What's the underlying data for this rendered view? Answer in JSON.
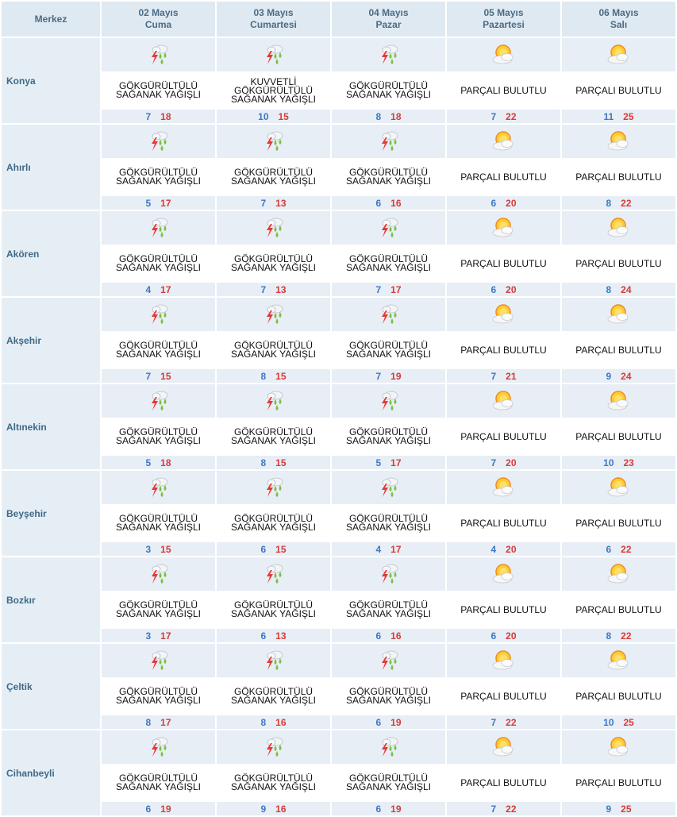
{
  "header": {
    "station_label": "Merkez",
    "days": [
      {
        "date": "02 Mayıs",
        "weekday": "Cuma"
      },
      {
        "date": "03 Mayıs",
        "weekday": "Cumartesi"
      },
      {
        "date": "04 Mayıs",
        "weekday": "Pazar"
      },
      {
        "date": "05 Mayıs",
        "weekday": "Pazartesi"
      },
      {
        "date": "06 Mayıs",
        "weekday": "Salı"
      }
    ]
  },
  "icons": {
    "storm": "thunderstorm-rain-icon",
    "partly": "partly-cloudy-icon"
  },
  "colors": {
    "header_bg": "#dfe9f1",
    "header_text": "#4b6c85",
    "city_text": "#3f6a88",
    "min_temp": "#3d78c4",
    "max_temp": "#d73a3a"
  },
  "rows": [
    {
      "city": "Konya",
      "days": [
        {
          "icon": "storm",
          "lines": [
            "GÖKGÜRÜLTÜLÜ",
            "SAĞANAK YAĞIŞLI"
          ],
          "min": "7",
          "max": "18"
        },
        {
          "icon": "storm",
          "lines": [
            "KUVVETLİ",
            "GÖKGÜRÜLTÜLÜ",
            "SAĞANAK YAĞIŞLI"
          ],
          "min": "10",
          "max": "15"
        },
        {
          "icon": "storm",
          "lines": [
            "GÖKGÜRÜLTÜLÜ",
            "SAĞANAK YAĞIŞLI"
          ],
          "min": "8",
          "max": "18"
        },
        {
          "icon": "partly",
          "lines": [
            "PARÇALI BULUTLU"
          ],
          "min": "7",
          "max": "22"
        },
        {
          "icon": "partly",
          "lines": [
            "PARÇALI BULUTLU"
          ],
          "min": "11",
          "max": "25"
        }
      ]
    },
    {
      "city": "Ahırlı",
      "days": [
        {
          "icon": "storm",
          "lines": [
            "GÖKGÜRÜLTÜLÜ",
            "SAĞANAK YAĞIŞLI"
          ],
          "min": "5",
          "max": "17"
        },
        {
          "icon": "storm",
          "lines": [
            "GÖKGÜRÜLTÜLÜ",
            "SAĞANAK YAĞIŞLI"
          ],
          "min": "7",
          "max": "13"
        },
        {
          "icon": "storm",
          "lines": [
            "GÖKGÜRÜLTÜLÜ",
            "SAĞANAK YAĞIŞLI"
          ],
          "min": "6",
          "max": "16"
        },
        {
          "icon": "partly",
          "lines": [
            "PARÇALI BULUTLU"
          ],
          "min": "6",
          "max": "20"
        },
        {
          "icon": "partly",
          "lines": [
            "PARÇALI BULUTLU"
          ],
          "min": "8",
          "max": "22"
        }
      ]
    },
    {
      "city": "Akören",
      "days": [
        {
          "icon": "storm",
          "lines": [
            "GÖKGÜRÜLTÜLÜ",
            "SAĞANAK YAĞIŞLI"
          ],
          "min": "4",
          "max": "17"
        },
        {
          "icon": "storm",
          "lines": [
            "GÖKGÜRÜLTÜLÜ",
            "SAĞANAK YAĞIŞLI"
          ],
          "min": "7",
          "max": "13"
        },
        {
          "icon": "storm",
          "lines": [
            "GÖKGÜRÜLTÜLÜ",
            "SAĞANAK YAĞIŞLI"
          ],
          "min": "7",
          "max": "17"
        },
        {
          "icon": "partly",
          "lines": [
            "PARÇALI BULUTLU"
          ],
          "min": "6",
          "max": "20"
        },
        {
          "icon": "partly",
          "lines": [
            "PARÇALI BULUTLU"
          ],
          "min": "8",
          "max": "24"
        }
      ]
    },
    {
      "city": "Akşehir",
      "days": [
        {
          "icon": "storm",
          "lines": [
            "GÖKGÜRÜLTÜLÜ",
            "SAĞANAK YAĞIŞLI"
          ],
          "min": "7",
          "max": "15"
        },
        {
          "icon": "storm",
          "lines": [
            "GÖKGÜRÜLTÜLÜ",
            "SAĞANAK YAĞIŞLI"
          ],
          "min": "8",
          "max": "15"
        },
        {
          "icon": "storm",
          "lines": [
            "GÖKGÜRÜLTÜLÜ",
            "SAĞANAK YAĞIŞLI"
          ],
          "min": "7",
          "max": "19"
        },
        {
          "icon": "partly",
          "lines": [
            "PARÇALI BULUTLU"
          ],
          "min": "7",
          "max": "21"
        },
        {
          "icon": "partly",
          "lines": [
            "PARÇALI BULUTLU"
          ],
          "min": "9",
          "max": "24"
        }
      ]
    },
    {
      "city": "Altınekin",
      "days": [
        {
          "icon": "storm",
          "lines": [
            "GÖKGÜRÜLTÜLÜ",
            "SAĞANAK YAĞIŞLI"
          ],
          "min": "5",
          "max": "18"
        },
        {
          "icon": "storm",
          "lines": [
            "GÖKGÜRÜLTÜLÜ",
            "SAĞANAK YAĞIŞLI"
          ],
          "min": "8",
          "max": "15"
        },
        {
          "icon": "storm",
          "lines": [
            "GÖKGÜRÜLTÜLÜ",
            "SAĞANAK YAĞIŞLI"
          ],
          "min": "5",
          "max": "17"
        },
        {
          "icon": "partly",
          "lines": [
            "PARÇALI BULUTLU"
          ],
          "min": "7",
          "max": "20"
        },
        {
          "icon": "partly",
          "lines": [
            "PARÇALI BULUTLU"
          ],
          "min": "10",
          "max": "23"
        }
      ]
    },
    {
      "city": "Beyşehir",
      "days": [
        {
          "icon": "storm",
          "lines": [
            "GÖKGÜRÜLTÜLÜ",
            "SAĞANAK YAĞIŞLI"
          ],
          "min": "3",
          "max": "15"
        },
        {
          "icon": "storm",
          "lines": [
            "GÖKGÜRÜLTÜLÜ",
            "SAĞANAK YAĞIŞLI"
          ],
          "min": "6",
          "max": "15"
        },
        {
          "icon": "storm",
          "lines": [
            "GÖKGÜRÜLTÜLÜ",
            "SAĞANAK YAĞIŞLI"
          ],
          "min": "4",
          "max": "17"
        },
        {
          "icon": "partly",
          "lines": [
            "PARÇALI BULUTLU"
          ],
          "min": "4",
          "max": "20"
        },
        {
          "icon": "partly",
          "lines": [
            "PARÇALI BULUTLU"
          ],
          "min": "6",
          "max": "22"
        }
      ]
    },
    {
      "city": "Bozkır",
      "days": [
        {
          "icon": "storm",
          "lines": [
            "GÖKGÜRÜLTÜLÜ",
            "SAĞANAK YAĞIŞLI"
          ],
          "min": "3",
          "max": "17"
        },
        {
          "icon": "storm",
          "lines": [
            "GÖKGÜRÜLTÜLÜ",
            "SAĞANAK YAĞIŞLI"
          ],
          "min": "6",
          "max": "13"
        },
        {
          "icon": "storm",
          "lines": [
            "GÖKGÜRÜLTÜLÜ",
            "SAĞANAK YAĞIŞLI"
          ],
          "min": "6",
          "max": "16"
        },
        {
          "icon": "partly",
          "lines": [
            "PARÇALI BULUTLU"
          ],
          "min": "6",
          "max": "20"
        },
        {
          "icon": "partly",
          "lines": [
            "PARÇALI BULUTLU"
          ],
          "min": "8",
          "max": "22"
        }
      ]
    },
    {
      "city": "Çeltik",
      "days": [
        {
          "icon": "storm",
          "lines": [
            "GÖKGÜRÜLTÜLÜ",
            "SAĞANAK YAĞIŞLI"
          ],
          "min": "8",
          "max": "17"
        },
        {
          "icon": "storm",
          "lines": [
            "GÖKGÜRÜLTÜLÜ",
            "SAĞANAK YAĞIŞLI"
          ],
          "min": "8",
          "max": "16"
        },
        {
          "icon": "storm",
          "lines": [
            "GÖKGÜRÜLTÜLÜ",
            "SAĞANAK YAĞIŞLI"
          ],
          "min": "6",
          "max": "19"
        },
        {
          "icon": "partly",
          "lines": [
            "PARÇALI BULUTLU"
          ],
          "min": "7",
          "max": "22"
        },
        {
          "icon": "partly",
          "lines": [
            "PARÇALI BULUTLU"
          ],
          "min": "10",
          "max": "25"
        }
      ]
    },
    {
      "city": "Cihanbeyli",
      "days": [
        {
          "icon": "storm",
          "lines": [
            "GÖKGÜRÜLTÜLÜ",
            "SAĞANAK YAĞIŞLI"
          ],
          "min": "6",
          "max": "19"
        },
        {
          "icon": "storm",
          "lines": [
            "GÖKGÜRÜLTÜLÜ",
            "SAĞANAK YAĞIŞLI"
          ],
          "min": "9",
          "max": "16"
        },
        {
          "icon": "storm",
          "lines": [
            "GÖKGÜRÜLTÜLÜ",
            "SAĞANAK YAĞIŞLI"
          ],
          "min": "6",
          "max": "19"
        },
        {
          "icon": "partly",
          "lines": [
            "PARÇALI BULUTLU"
          ],
          "min": "7",
          "max": "22"
        },
        {
          "icon": "partly",
          "lines": [
            "PARÇALI BULUTLU"
          ],
          "min": "9",
          "max": "25"
        }
      ]
    }
  ]
}
